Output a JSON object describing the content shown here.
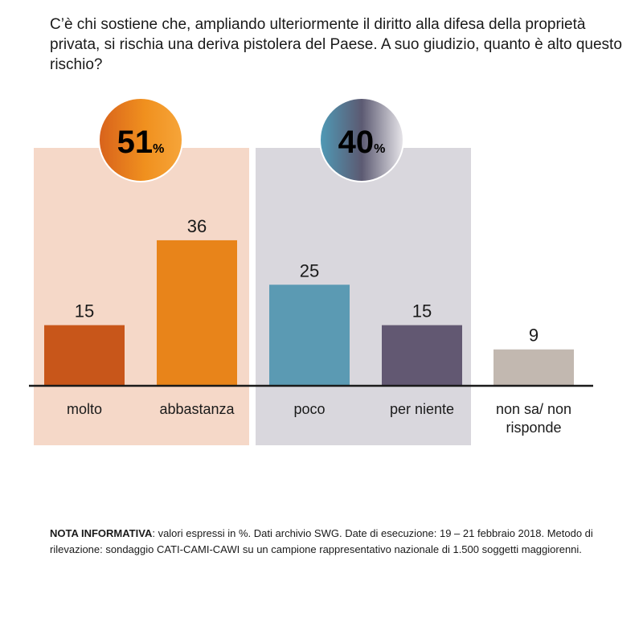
{
  "question": "C’è chi sostiene che, ampliando ulteriormente il diritto alla difesa della proprietà privata, si rischia una deriva pistolera del Paese. A suo giudizio, quanto è alto questo rischio?",
  "groups": [
    {
      "value": "51",
      "unit": "%",
      "categories": [
        "molto",
        "abbastanza"
      ],
      "panel_color": "#f5d8c8"
    },
    {
      "value": "40",
      "unit": "%",
      "categories": [
        "poco",
        "per niente"
      ],
      "panel_color": "#d9d7dd"
    }
  ],
  "chart_data": {
    "type": "bar",
    "categories": [
      "molto",
      "abbastanza",
      "poco",
      "per niente",
      "non sa/ non risponde"
    ],
    "category_lines": [
      [
        "molto"
      ],
      [
        "abbastanza"
      ],
      [
        "poco"
      ],
      [
        "per niente"
      ],
      [
        "non sa/ non",
        "risponde"
      ]
    ],
    "values": [
      15,
      36,
      25,
      15,
      9
    ],
    "colors": [
      "#c8561a",
      "#e8841a",
      "#5b9ab3",
      "#625872",
      "#c2b8b0"
    ],
    "unit": "%",
    "ylim": [
      0,
      40
    ]
  },
  "note": {
    "label": "NOTA INFORMATIVA",
    "text": ": valori espressi in %. Dati archivio SWG. Date di esecuzione: 19 – 21 febbraio 2018. Metodo di rilevazione: sondaggio CATI-CAMI-CAWI su un campione rappresentativo nazionale di 1.500 soggetti maggiorenni."
  }
}
